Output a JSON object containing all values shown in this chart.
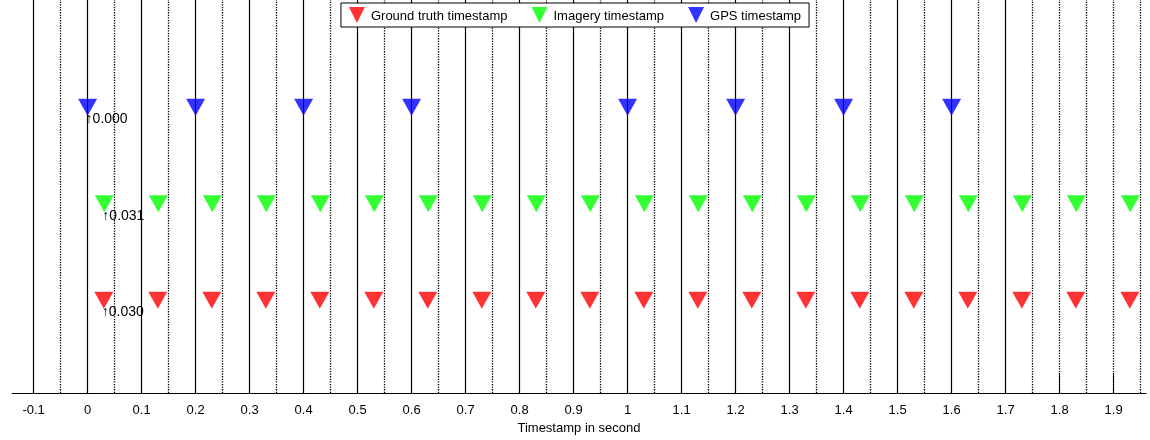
{
  "chart_data": {
    "type": "scatter",
    "orientation": "horizontal",
    "xlabel": "Timestamp in second",
    "marker": "triangle",
    "legend": "top",
    "grid": false,
    "categories": [
      null,
      null,
      null
    ],
    "xlim": [
      -0.14,
      1.96
    ],
    "xticks": [
      -0.1,
      0,
      0.1,
      0.2,
      0.3,
      0.4,
      0.5,
      0.6,
      0.7,
      0.8,
      0.9,
      1,
      1.1,
      1.2,
      1.3,
      1.4,
      1.5,
      1.6,
      1.7,
      1.8,
      1.9
    ],
    "series": [
      {
        "name": "Ground truth timestamp",
        "color": "#ff0000",
        "values": [
          null,
          null,
          0.03
        ]
      },
      {
        "color": "#ff0000",
        "values": [
          null,
          null,
          0.13
        ]
      },
      {
        "color": "#ff0000",
        "values": [
          null,
          null,
          0.23
        ]
      },
      {
        "color": "#ff0000",
        "values": [
          null,
          null,
          0.33
        ]
      },
      {
        "color": "#ff0000",
        "values": [
          null,
          null,
          0.43
        ]
      },
      {
        "color": "#ff0000",
        "values": [
          null,
          null,
          0.53
        ]
      },
      {
        "color": "#ff0000",
        "values": [
          null,
          null,
          0.63
        ]
      },
      {
        "color": "#ff0000",
        "values": [
          null,
          null,
          0.73
        ]
      },
      {
        "color": "#ff0000",
        "values": [
          null,
          null,
          0.83
        ]
      },
      {
        "color": "#ff0000",
        "values": [
          null,
          null,
          0.93
        ]
      },
      {
        "color": "#ff0000",
        "values": [
          null,
          null,
          1.03
        ]
      },
      {
        "color": "#ff0000",
        "values": [
          null,
          null,
          1.13
        ]
      },
      {
        "color": "#ff0000",
        "values": [
          null,
          null,
          1.23
        ]
      },
      {
        "color": "#ff0000",
        "values": [
          null,
          null,
          1.33
        ]
      },
      {
        "color": "#ff0000",
        "values": [
          null,
          null,
          1.43
        ]
      },
      {
        "color": "#ff0000",
        "values": [
          null,
          null,
          1.53
        ]
      },
      {
        "color": "#ff0000",
        "values": [
          null,
          null,
          1.63
        ]
      },
      {
        "color": "#ff0000",
        "values": [
          null,
          null,
          1.73
        ]
      },
      {
        "color": "#ff0000",
        "values": [
          null,
          null,
          1.83
        ]
      },
      {
        "color": "#ff0000",
        "values": [
          null,
          null,
          1.93
        ]
      },
      {
        "name": "Imagery timestamp",
        "color": "#00ff00",
        "values": [
          null,
          0.031,
          null
        ]
      },
      {
        "color": "#00ff00",
        "values": [
          null,
          0.131,
          null
        ]
      },
      {
        "color": "#00ff00",
        "values": [
          null,
          0.231,
          null
        ]
      },
      {
        "color": "#00ff00",
        "values": [
          null,
          0.331,
          null
        ]
      },
      {
        "color": "#00ff00",
        "values": [
          null,
          0.431,
          null
        ]
      },
      {
        "color": "#00ff00",
        "values": [
          null,
          0.531,
          null
        ]
      },
      {
        "color": "#00ff00",
        "values": [
          null,
          0.631,
          null
        ]
      },
      {
        "color": "#00ff00",
        "values": [
          null,
          0.731,
          null
        ]
      },
      {
        "color": "#00ff00",
        "values": [
          null,
          0.831,
          null
        ]
      },
      {
        "color": "#00ff00",
        "values": [
          null,
          0.931,
          null
        ]
      },
      {
        "color": "#00ff00",
        "values": [
          null,
          1.031,
          null
        ]
      },
      {
        "color": "#00ff00",
        "values": [
          null,
          1.131,
          null
        ]
      },
      {
        "color": "#00ff00",
        "values": [
          null,
          1.231,
          null
        ]
      },
      {
        "color": "#00ff00",
        "values": [
          null,
          1.331,
          null
        ]
      },
      {
        "color": "#00ff00",
        "values": [
          null,
          1.431,
          null
        ]
      },
      {
        "color": "#00ff00",
        "values": [
          null,
          1.531,
          null
        ]
      },
      {
        "color": "#00ff00",
        "values": [
          null,
          1.631,
          null
        ]
      },
      {
        "color": "#00ff00",
        "values": [
          null,
          1.731,
          null
        ]
      },
      {
        "color": "#00ff00",
        "values": [
          null,
          1.831,
          null
        ]
      },
      {
        "color": "#00ff00",
        "values": [
          null,
          1.931,
          null
        ]
      },
      {
        "name": "GPS timestamp",
        "color": "#0000ff",
        "values": [
          0,
          null,
          null
        ]
      },
      {
        "color": "#0000ff",
        "values": [
          0.2,
          null,
          null
        ]
      },
      {
        "color": "#0000ff",
        "values": [
          0.4,
          null,
          null
        ]
      },
      {
        "color": "#0000ff",
        "values": [
          0.6,
          null,
          null
        ]
      },
      {
        "color": "#0000ff",
        "values": [
          1.0,
          null,
          null
        ]
      },
      {
        "color": "#0000ff",
        "values": [
          1.2,
          null,
          null
        ]
      },
      {
        "color": "#0000ff",
        "values": [
          1.4,
          null,
          null
        ]
      },
      {
        "color": "#0000ff",
        "values": [
          1.6,
          null,
          null
        ]
      }
    ],
    "annotations": [
      {
        "text": "↑0.000",
        "x": 0
      },
      {
        "text": "↑0.031",
        "x": 0.031
      },
      {
        "text": "↑0.030",
        "x": 0.03
      }
    ],
    "ref_lines": [
      {
        "axis": "x",
        "value": -0.1,
        "color": "#000000",
        "line_style": "solid"
      },
      {
        "axis": "x",
        "value": 0,
        "color": "#000000",
        "line_style": "solid"
      },
      {
        "axis": "x",
        "value": 0.1,
        "color": "#000000",
        "line_style": "solid"
      },
      {
        "axis": "x",
        "value": 0.2,
        "color": "#000000",
        "line_style": "solid"
      },
      {
        "axis": "x",
        "value": 0.3,
        "color": "#000000",
        "line_style": "solid"
      },
      {
        "axis": "x",
        "value": 0.4,
        "color": "#000000",
        "line_style": "solid"
      },
      {
        "axis": "x",
        "value": 0.5,
        "color": "#000000",
        "line_style": "solid"
      },
      {
        "axis": "x",
        "value": 0.6,
        "color": "#000000",
        "line_style": "solid"
      },
      {
        "axis": "x",
        "value": 0.7,
        "color": "#000000",
        "line_style": "solid"
      },
      {
        "axis": "x",
        "value": 0.8,
        "color": "#000000",
        "line_style": "solid"
      },
      {
        "axis": "x",
        "value": 0.9,
        "color": "#000000",
        "line_style": "solid"
      },
      {
        "axis": "x",
        "value": 1.0,
        "color": "#000000",
        "line_style": "solid"
      },
      {
        "axis": "x",
        "value": 1.1,
        "color": "#000000",
        "line_style": "solid"
      },
      {
        "axis": "x",
        "value": 1.2,
        "color": "#000000",
        "line_style": "solid"
      },
      {
        "axis": "x",
        "value": 1.3,
        "color": "#000000",
        "line_style": "solid"
      },
      {
        "axis": "x",
        "value": 1.4,
        "color": "#000000",
        "line_style": "solid"
      },
      {
        "axis": "x",
        "value": 1.5,
        "color": "#000000",
        "line_style": "solid"
      },
      {
        "axis": "x",
        "value": 1.6,
        "color": "#000000",
        "line_style": "solid"
      },
      {
        "axis": "x",
        "value": 1.7,
        "color": "#000000",
        "line_style": "solid"
      },
      {
        "axis": "x",
        "value": -0.05,
        "color": "#000000",
        "line_style": "dotted"
      },
      {
        "axis": "x",
        "value": 0.05,
        "color": "#000000",
        "line_style": "dotted"
      },
      {
        "axis": "x",
        "value": 0.15,
        "color": "#000000",
        "line_style": "dotted"
      },
      {
        "axis": "x",
        "value": 0.25,
        "color": "#000000",
        "line_style": "dotted"
      },
      {
        "axis": "x",
        "value": 0.35,
        "color": "#000000",
        "line_style": "dotted"
      },
      {
        "axis": "x",
        "value": 0.45,
        "color": "#000000",
        "line_style": "dotted"
      },
      {
        "axis": "x",
        "value": 0.55,
        "color": "#000000",
        "line_style": "dotted"
      },
      {
        "axis": "x",
        "value": 0.65,
        "color": "#000000",
        "line_style": "dotted"
      },
      {
        "axis": "x",
        "value": 0.75,
        "color": "#000000",
        "line_style": "dotted"
      },
      {
        "axis": "x",
        "value": 0.85,
        "color": "#000000",
        "line_style": "dotted"
      },
      {
        "axis": "x",
        "value": 0.95,
        "color": "#000000",
        "line_style": "dotted"
      },
      {
        "axis": "x",
        "value": 1.05,
        "color": "#000000",
        "line_style": "dotted"
      },
      {
        "axis": "x",
        "value": 1.15,
        "color": "#000000",
        "line_style": "dotted"
      },
      {
        "axis": "x",
        "value": 1.25,
        "color": "#000000",
        "line_style": "dotted"
      },
      {
        "axis": "x",
        "value": 1.35,
        "color": "#000000",
        "line_style": "dotted"
      },
      {
        "axis": "x",
        "value": 1.45,
        "color": "#000000",
        "line_style": "dotted"
      },
      {
        "axis": "x",
        "value": 1.55,
        "color": "#000000",
        "line_style": "dotted"
      },
      {
        "axis": "x",
        "value": 1.65,
        "color": "#000000",
        "line_style": "dotted"
      },
      {
        "axis": "x",
        "value": 1.75,
        "color": "#000000",
        "line_style": "dotted"
      },
      {
        "axis": "x",
        "value": 1.8,
        "color": "#000000",
        "line_style": "dotted"
      },
      {
        "axis": "x",
        "value": 1.85,
        "color": "#000000",
        "line_style": "dotted"
      },
      {
        "axis": "x",
        "value": 1.9,
        "color": "#000000",
        "line_style": "dotted"
      },
      {
        "axis": "x",
        "value": 1.95,
        "color": "#000000",
        "line_style": "dotted"
      }
    ]
  }
}
